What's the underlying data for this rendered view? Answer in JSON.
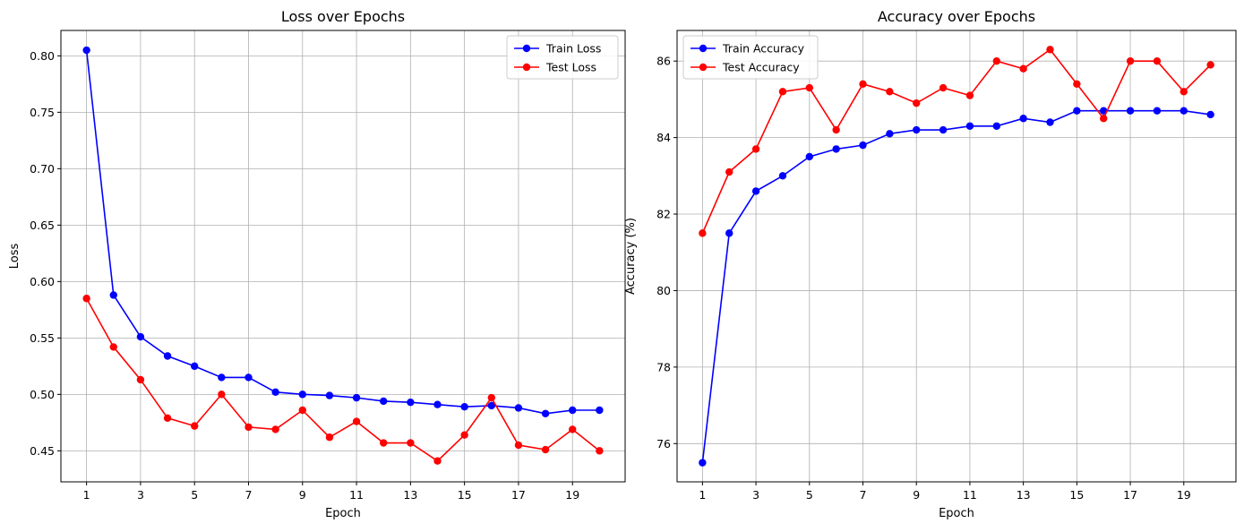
{
  "chart_data": [
    {
      "type": "line",
      "title": "Loss over Epochs",
      "xlabel": "Epoch",
      "ylabel": "Loss",
      "x": [
        1,
        2,
        3,
        4,
        5,
        6,
        7,
        8,
        9,
        10,
        11,
        12,
        13,
        14,
        15,
        16,
        17,
        18,
        19,
        20
      ],
      "xticks": [
        1,
        3,
        5,
        7,
        9,
        11,
        13,
        15,
        17,
        19
      ],
      "xlim": [
        0.05,
        20.95
      ],
      "ylim": [
        0.4225,
        0.8225
      ],
      "yticks": [
        0.45,
        0.5,
        0.55,
        0.6,
        0.65,
        0.7,
        0.75,
        0.8
      ],
      "ytick_labels": [
        "0.45",
        "0.50",
        "0.55",
        "0.60",
        "0.65",
        "0.70",
        "0.75",
        "0.80"
      ],
      "grid": true,
      "legend_position": "top-right",
      "series": [
        {
          "name": "Train Loss",
          "color": "#0000ff",
          "values": [
            0.805,
            0.588,
            0.551,
            0.534,
            0.525,
            0.515,
            0.515,
            0.502,
            0.5,
            0.499,
            0.497,
            0.494,
            0.493,
            0.491,
            0.489,
            0.49,
            0.488,
            0.483,
            0.486,
            0.486
          ]
        },
        {
          "name": "Test Loss",
          "color": "#ff0000",
          "values": [
            0.585,
            0.542,
            0.513,
            0.479,
            0.472,
            0.5,
            0.471,
            0.469,
            0.486,
            0.462,
            0.476,
            0.457,
            0.457,
            0.441,
            0.464,
            0.497,
            0.455,
            0.451,
            0.469,
            0.45
          ]
        }
      ]
    },
    {
      "type": "line",
      "title": "Accuracy over Epochs",
      "xlabel": "Epoch",
      "ylabel": "Accuracy (%)",
      "x": [
        1,
        2,
        3,
        4,
        5,
        6,
        7,
        8,
        9,
        10,
        11,
        12,
        13,
        14,
        15,
        16,
        17,
        18,
        19,
        20
      ],
      "xticks": [
        1,
        3,
        5,
        7,
        9,
        11,
        13,
        15,
        17,
        19
      ],
      "xlim": [
        0.05,
        20.95
      ],
      "ylim": [
        75.0,
        86.8
      ],
      "yticks": [
        76,
        78,
        80,
        82,
        84,
        86
      ],
      "ytick_labels": [
        "76",
        "78",
        "80",
        "82",
        "84",
        "86"
      ],
      "grid": true,
      "legend_position": "top-left",
      "series": [
        {
          "name": "Train Accuracy",
          "color": "#0000ff",
          "values": [
            75.5,
            81.5,
            82.6,
            83.0,
            83.5,
            83.7,
            83.8,
            84.1,
            84.2,
            84.2,
            84.3,
            84.3,
            84.5,
            84.4,
            84.7,
            84.7,
            84.7,
            84.7,
            84.7,
            84.6
          ]
        },
        {
          "name": "Test Accuracy",
          "color": "#ff0000",
          "values": [
            81.5,
            83.1,
            83.7,
            85.2,
            85.3,
            84.2,
            85.4,
            85.2,
            84.9,
            85.3,
            85.1,
            86.0,
            85.8,
            86.3,
            85.4,
            84.5,
            86.0,
            86.0,
            85.2,
            85.9
          ]
        }
      ]
    }
  ]
}
